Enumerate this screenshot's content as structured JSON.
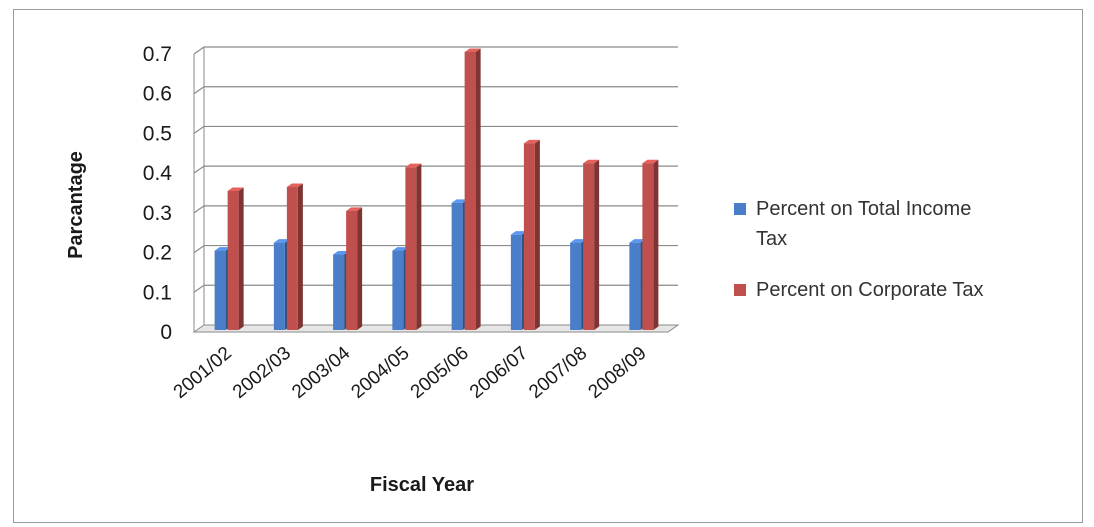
{
  "chart_data": {
    "type": "bar",
    "categories": [
      "2001/02",
      "2002/03",
      "2003/04",
      "2004/05",
      "2005/06",
      "2006/07",
      "2007/08",
      "2008/09"
    ],
    "series": [
      {
        "name": "Percent on Total Income Tax",
        "color": "#4a7ec8",
        "values": [
          0.2,
          0.22,
          0.19,
          0.2,
          0.32,
          0.24,
          0.22,
          0.22
        ]
      },
      {
        "name": "Percent on Corporate Tax",
        "color": "#c0504d",
        "values": [
          0.35,
          0.36,
          0.3,
          0.41,
          0.7,
          0.47,
          0.42,
          0.42
        ]
      }
    ],
    "title": "",
    "xlabel": "Fiscal Year",
    "ylabel": "Parcantage",
    "ylim": [
      0,
      0.7
    ],
    "yticks": [
      "0",
      "0.1",
      "0.2",
      "0.3",
      "0.4",
      "0.5",
      "0.6",
      "0.7"
    ],
    "ytick_values": [
      0,
      0.1,
      0.2,
      0.3,
      0.4,
      0.5,
      0.6,
      0.7
    ],
    "grid": true,
    "legend": "right"
  }
}
